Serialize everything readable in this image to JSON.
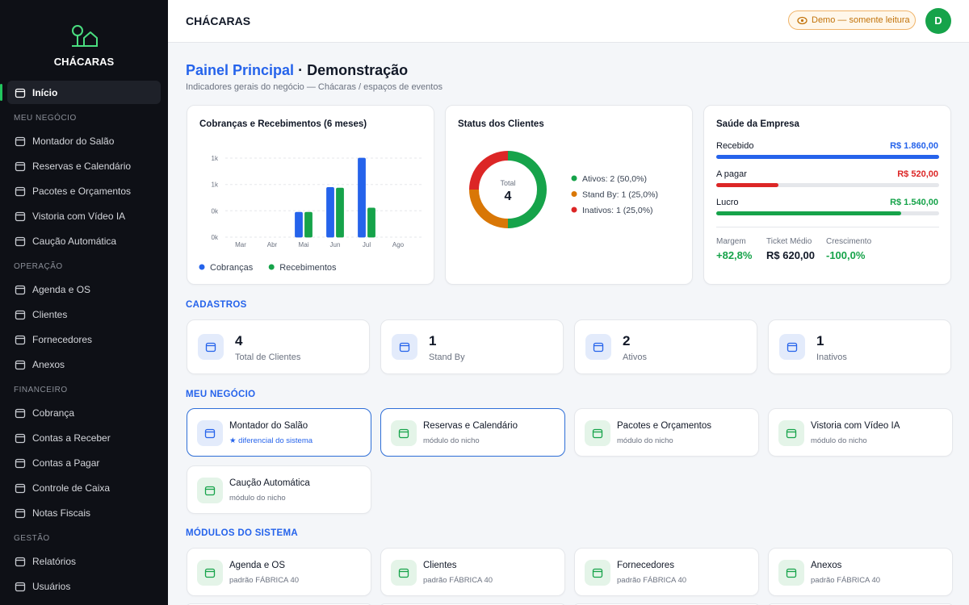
{
  "header": {
    "title": "CHÁCARAS",
    "badge": "Demo — somente leitura",
    "avatar": "D"
  },
  "sidebar": {
    "brand": "CHÁCARAS",
    "home": "Início",
    "sections": [
      {
        "title": "MEU NEGÓCIO",
        "items": [
          "Montador do Salão",
          "Reservas e Calendário",
          "Pacotes e Orçamentos",
          "Vistoria com Vídeo IA",
          "Caução Automática"
        ]
      },
      {
        "title": "OPERAÇÃO",
        "items": [
          "Agenda e OS",
          "Clientes",
          "Fornecedores",
          "Anexos"
        ]
      },
      {
        "title": "FINANCEIRO",
        "items": [
          "Cobrança",
          "Contas a Receber",
          "Contas a Pagar",
          "Controle de Caixa",
          "Notas Fiscais"
        ]
      },
      {
        "title": "GESTÃO",
        "items": [
          "Relatórios",
          "Usuários"
        ]
      }
    ]
  },
  "page": {
    "title": "Painel Principal",
    "title_suffix": "· Demonstração",
    "subtitle": "Indicadores gerais do negócio — Chácaras / espaços de eventos"
  },
  "chart_data": [
    {
      "type": "bar",
      "title": "Cobranças e Recebimentos (6 meses)",
      "categories": [
        "Mar",
        "Abr",
        "Mai",
        "Jun",
        "Jul",
        "Ago"
      ],
      "series": [
        {
          "name": "Cobranças",
          "color": "#2563eb",
          "values": [
            0,
            0,
            440,
            880,
            1400,
            0
          ]
        },
        {
          "name": "Recebimentos",
          "color": "#16a34a",
          "values": [
            0,
            0,
            440,
            870,
            515,
            0
          ]
        }
      ],
      "ylim": [
        0,
        1400
      ],
      "yticks": [
        {
          "value": 0,
          "label": "0k"
        },
        {
          "value": 467,
          "label": "0k"
        },
        {
          "value": 933,
          "label": "1k"
        },
        {
          "value": 1400,
          "label": "1k"
        }
      ],
      "grid": true
    },
    {
      "type": "pie",
      "title": "Status dos Clientes",
      "center_label": "Total",
      "total": 4,
      "values": [
        2,
        1,
        1
      ],
      "value_labels": [
        "Ativos: 2 (50,0%)",
        "Stand By: 1 (25,0%)",
        "Inativos: 1 (25,0%)"
      ],
      "colors": [
        "#16a34a",
        "#d97706",
        "#dc2626"
      ]
    }
  ],
  "health": {
    "title": "Saúde da Empresa",
    "bars": [
      {
        "name": "Recebido",
        "value": 1860,
        "label": "R$ 1.860,00",
        "color": "#2563eb"
      },
      {
        "name": "A pagar",
        "value": 520,
        "label": "R$ 520,00",
        "color": "#dc2626"
      },
      {
        "name": "Lucro",
        "value": 1540,
        "label": "R$ 1.540,00",
        "color": "#16a34a"
      }
    ],
    "metrics": [
      {
        "name": "Margem",
        "value": "+82,8%",
        "color": "#16a34a"
      },
      {
        "name": "Ticket Médio",
        "value": "R$ 620,00",
        "color": "#111827"
      },
      {
        "name": "Crescimento",
        "value": "-100,0%",
        "color": "#16a34a"
      }
    ]
  },
  "cadastros": {
    "title": "CADASTROS",
    "stats": [
      {
        "value": 4,
        "label": "Total de Clientes"
      },
      {
        "value": 1,
        "label": "Stand By"
      },
      {
        "value": 2,
        "label": "Ativos"
      },
      {
        "value": 1,
        "label": "Inativos"
      }
    ]
  },
  "business": {
    "title": "MEU NEGÓCIO",
    "cards": [
      {
        "title": "Montador do Salão",
        "subtitle": "★ diferencial do sistema",
        "highlighted": true
      },
      {
        "title": "Reservas e Calendário",
        "subtitle": "módulo do nicho",
        "highlighted": true
      },
      {
        "title": "Pacotes e Orçamentos",
        "subtitle": "módulo do nicho"
      },
      {
        "title": "Vistoria com Vídeo IA",
        "subtitle": "módulo do nicho"
      },
      {
        "title": "Caução Automática",
        "subtitle": "módulo do nicho"
      }
    ]
  },
  "modules": {
    "title": "MÓDULOS DO SISTEMA",
    "cards": [
      {
        "title": "Agenda e OS",
        "subtitle": "padrão FÁBRICA 40"
      },
      {
        "title": "Clientes",
        "subtitle": "padrão FÁBRICA 40"
      },
      {
        "title": "Fornecedores",
        "subtitle": "padrão FÁBRICA 40"
      },
      {
        "title": "Anexos",
        "subtitle": "padrão FÁBRICA 40"
      }
    ]
  }
}
